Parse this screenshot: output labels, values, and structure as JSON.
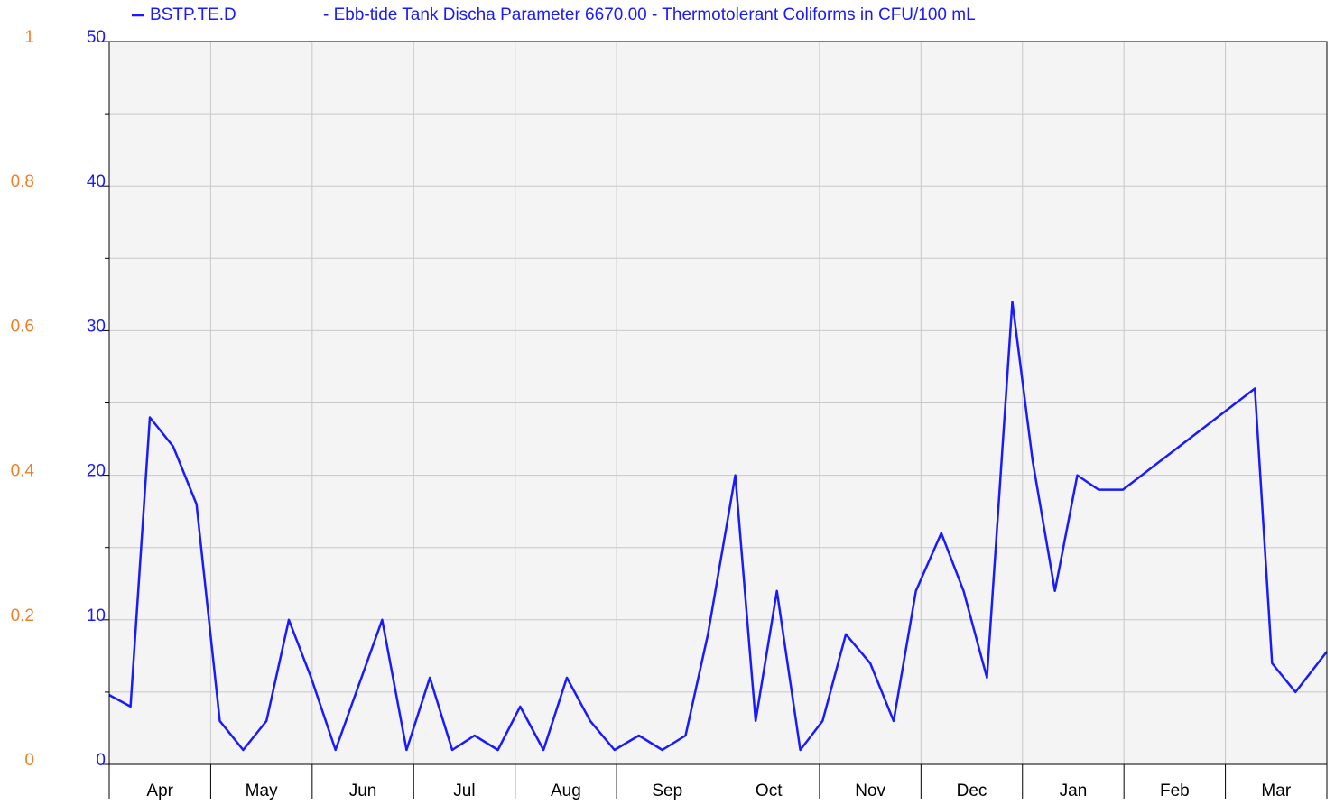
{
  "chart_data": {
    "type": "line",
    "title": "- Ebb-tide Tank Discha Parameter 6670.00 - Thermotolerant Coliforms in CFU/100 mL",
    "categories": [
      "Apr",
      "May",
      "Jun",
      "Jul",
      "Aug",
      "Sep",
      "Oct",
      "Nov",
      "Dec",
      "Jan",
      "Feb",
      "Mar"
    ],
    "xlim": [
      0,
      12
    ],
    "xticks": [
      0,
      1,
      2,
      3,
      4,
      5,
      6,
      7,
      8,
      9,
      10,
      11,
      12
    ],
    "ylim": [
      0,
      50
    ],
    "yticks": [
      0,
      10,
      20,
      30,
      40,
      50
    ],
    "minor_yticks": [
      5,
      15,
      25,
      35,
      45
    ],
    "y2lim": [
      0,
      1
    ],
    "y2ticks": [
      0,
      {
        "value": 0.2,
        "label": "0.2"
      },
      {
        "value": 0.4,
        "label": "0.4"
      },
      {
        "value": 0.6,
        "label": "0.6"
      },
      {
        "value": 0.8,
        "label": "0.8"
      },
      1
    ],
    "y2color": "#f07f2a",
    "grid": true,
    "series": [
      {
        "name": "BSTP.TE.D",
        "color": "#1a1aff",
        "x": [
          0.0,
          0.21,
          0.4,
          0.63,
          0.86,
          1.09,
          1.32,
          1.55,
          1.77,
          1.99,
          2.23,
          2.69,
          2.93,
          3.16,
          3.38,
          3.6,
          3.83,
          4.05,
          4.28,
          4.51,
          4.74,
          4.98,
          5.22,
          5.45,
          5.68,
          5.9,
          6.17,
          6.37,
          6.58,
          6.81,
          7.03,
          7.26,
          7.5,
          7.73,
          7.95,
          8.2,
          8.42,
          8.65,
          8.9,
          9.1,
          9.32,
          9.54,
          9.75,
          9.99,
          11.29,
          11.46,
          11.69,
          12.0
        ],
        "values": [
          4.8,
          4,
          24,
          22,
          18,
          3,
          1,
          3,
          10,
          6,
          1,
          10,
          1,
          6,
          1,
          2,
          1,
          4,
          1,
          6,
          3,
          1,
          2,
          1,
          2,
          9,
          20,
          3,
          12,
          1,
          3,
          9,
          7,
          3,
          12,
          16,
          12,
          6,
          32,
          21,
          12,
          20,
          19,
          19,
          26,
          7,
          5,
          7.8
        ]
      }
    ]
  }
}
